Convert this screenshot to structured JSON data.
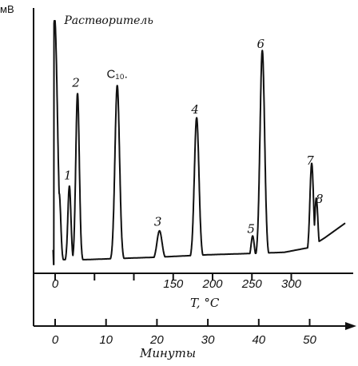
{
  "chart_data": {
    "type": "line",
    "title": "",
    "ylabel": "мВ",
    "temperature_axis": {
      "label": "T, °C",
      "ticks": [
        0,
        50,
        100,
        150,
        200,
        250,
        300
      ],
      "tick_labels": [
        "0",
        "",
        "",
        "150",
        "200",
        "250",
        "300"
      ]
    },
    "time_axis": {
      "label": "Минуты",
      "ticks": [
        0,
        10,
        20,
        30,
        40,
        50
      ],
      "tick_labels": [
        "0",
        "10",
        "20",
        "30",
        "40",
        "50"
      ],
      "xlim": [
        -2,
        57
      ]
    },
    "ylim": [
      0,
      100
    ],
    "grid": false,
    "baseline": [
      {
        "t": 0.2,
        "v": 2
      },
      {
        "t": 6,
        "v": 2
      },
      {
        "t": 10,
        "v": 2.3
      },
      {
        "t": 20,
        "v": 3
      },
      {
        "t": 30,
        "v": 4
      },
      {
        "t": 38,
        "v": 4.5
      },
      {
        "t": 45,
        "v": 5
      },
      {
        "t": 50,
        "v": 7
      },
      {
        "t": 53,
        "v": 11
      },
      {
        "t": 55,
        "v": 14
      },
      {
        "t": 57,
        "v": 17
      }
    ],
    "peaks": [
      {
        "label": "Растворитель",
        "t": -0.1,
        "height": 100,
        "width": 0.55
      },
      {
        "label": "",
        "t": 0.8,
        "height": 28,
        "width": 0.3
      },
      {
        "label": "1",
        "t": 2.8,
        "height": 31,
        "width": 0.3
      },
      {
        "label": "2",
        "t": 4.4,
        "height": 69,
        "width": 0.35
      },
      {
        "label": "C₁₀.",
        "t": 12.2,
        "height": 72,
        "width": 0.45
      },
      {
        "label": "3",
        "t": 20.5,
        "height": 12,
        "width": 0.5
      },
      {
        "label": "4",
        "t": 27.8,
        "height": 58,
        "width": 0.45
      },
      {
        "label": "5",
        "t": 38.8,
        "height": 9,
        "width": 0.3
      },
      {
        "label": "6",
        "t": 40.7,
        "height": 85,
        "width": 0.45
      },
      {
        "label": "7",
        "t": 50.4,
        "height": 37,
        "width": 0.35
      },
      {
        "label": "8",
        "t": 51.3,
        "height": 22,
        "width": 0.3
      }
    ]
  }
}
